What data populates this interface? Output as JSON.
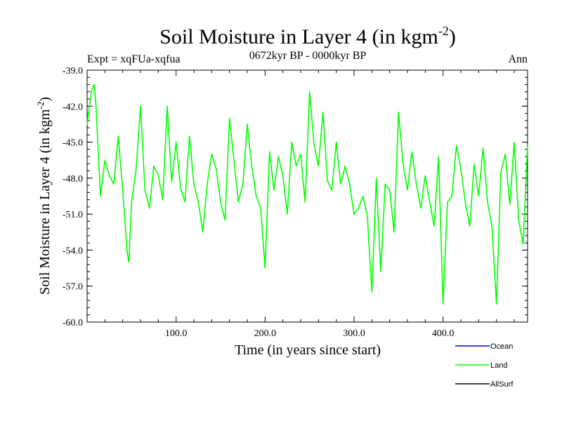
{
  "chart_data": {
    "type": "line",
    "title": "Soil Moisture in Layer 4 (in kgm",
    "title_sup": "-2",
    "title_close": ")",
    "subtitle_left": "Expt = xqFUa-xqfua",
    "subtitle_center": "0672kyr BP - 0000kyr BP",
    "subtitle_right": "Ann",
    "xlabel": "Time (in years since start)",
    "ylabel": "Soil Moisture in Layer 4 (in kgm",
    "ylabel_sup": "-2",
    "ylabel_close": ")",
    "xlim": [
      0,
      495
    ],
    "ylim": [
      -60.0,
      -39.0
    ],
    "xticks": [
      100,
      200,
      300,
      400
    ],
    "xtick_labels": [
      "100.0",
      "200.0",
      "300.0",
      "400.0"
    ],
    "yticks": [
      -39,
      -42,
      -45,
      -48,
      -51,
      -54,
      -57,
      -60
    ],
    "ytick_labels": [
      "-39.0",
      "-42.0",
      "-45.0",
      "-48.0",
      "-51.0",
      "-54.0",
      "-57.0",
      "-60.0"
    ],
    "legend": [
      {
        "name": "Ocean",
        "color": "#0000ff"
      },
      {
        "name": "Land",
        "color": "#00ff00"
      },
      {
        "name": "AllSurf",
        "color": "#000000"
      }
    ],
    "legend_position": "bottom-right",
    "series": [
      {
        "name": "Land",
        "color": "#00ff00",
        "x": [
          0,
          5,
          8,
          10,
          15,
          20,
          25,
          30,
          35,
          40,
          45,
          47,
          50,
          55,
          60,
          65,
          70,
          75,
          80,
          85,
          90,
          95,
          100,
          105,
          110,
          115,
          120,
          125,
          130,
          135,
          140,
          145,
          150,
          155,
          160,
          165,
          170,
          175,
          180,
          185,
          190,
          195,
          200,
          205,
          210,
          215,
          220,
          225,
          230,
          235,
          240,
          245,
          250,
          255,
          260,
          265,
          270,
          275,
          280,
          285,
          290,
          295,
          300,
          305,
          310,
          315,
          320,
          325,
          330,
          335,
          340,
          345,
          350,
          355,
          360,
          365,
          370,
          375,
          380,
          385,
          390,
          395,
          400,
          405,
          410,
          415,
          420,
          425,
          430,
          435,
          440,
          445,
          450,
          455,
          460,
          465,
          470,
          475,
          480,
          485,
          490,
          495
        ],
        "values": [
          -43.5,
          -40.7,
          -40.2,
          -42.0,
          -49.5,
          -46.5,
          -47.8,
          -48.5,
          -44.5,
          -49.0,
          -54.2,
          -55.0,
          -50.0,
          -47.3,
          -42.0,
          -49.0,
          -50.5,
          -47.0,
          -47.8,
          -49.8,
          -42.0,
          -48.3,
          -45.0,
          -48.8,
          -50.0,
          -44.5,
          -48.5,
          -50.0,
          -52.5,
          -48.5,
          -46.0,
          -47.2,
          -50.0,
          -51.5,
          -43.0,
          -46.5,
          -50.0,
          -48.5,
          -43.5,
          -47.0,
          -49.5,
          -50.5,
          -55.5,
          -45.8,
          -49.0,
          -46.2,
          -47.8,
          -51.0,
          -45.0,
          -47.0,
          -46.0,
          -50.0,
          -40.8,
          -45.2,
          -47.0,
          -42.5,
          -48.2,
          -49.0,
          -45.0,
          -48.5,
          -47.0,
          -48.5,
          -51.0,
          -50.5,
          -49.5,
          -51.2,
          -57.5,
          -48.0,
          -55.8,
          -48.5,
          -49.0,
          -52.5,
          -42.5,
          -46.8,
          -49.0,
          -45.8,
          -48.5,
          -50.5,
          -47.8,
          -50.0,
          -52.0,
          -46.2,
          -58.5,
          -50.0,
          -49.5,
          -45.3,
          -47.2,
          -50.0,
          -52.0,
          -46.8,
          -49.5,
          -45.5,
          -50.0,
          -52.0,
          -58.5,
          -47.5,
          -46.0,
          -50.2,
          -45.0,
          -51.5,
          -53.5,
          -45.3
        ]
      },
      {
        "name": "Ocean",
        "color": "#0000ff",
        "x": [],
        "values": []
      },
      {
        "name": "AllSurf",
        "color": "#000000",
        "x": [],
        "values": []
      }
    ]
  }
}
